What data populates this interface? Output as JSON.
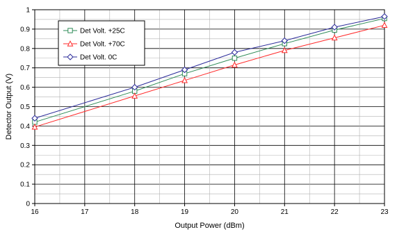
{
  "chart_data": {
    "type": "line",
    "title": "",
    "xlabel": "Output Power (dBm)",
    "ylabel": "Detector Output (V)",
    "xlim": [
      16,
      23
    ],
    "ylim": [
      0,
      1
    ],
    "x_ticks": [
      "16",
      "17",
      "18",
      "19",
      "20",
      "21",
      "22",
      "23"
    ],
    "y_ticks": [
      "0",
      "0.1",
      "0.2",
      "0.3",
      "0.4",
      "0.5",
      "0.6",
      "0.7",
      "0.8",
      "0.9",
      "1"
    ],
    "grid": true,
    "legend_position": "top-left",
    "series": [
      {
        "name": "Det Volt. +25C",
        "marker": "square",
        "color": "#2e8b57",
        "x": [
          16,
          18,
          19,
          20,
          21,
          22,
          23
        ],
        "y": [
          0.42,
          0.58,
          0.67,
          0.75,
          0.825,
          0.895,
          0.955
        ]
      },
      {
        "name": "Det Volt. +70C",
        "marker": "triangle",
        "color": "#ff2a2a",
        "x": [
          16,
          18,
          19,
          20,
          21,
          22,
          23
        ],
        "y": [
          0.395,
          0.555,
          0.635,
          0.715,
          0.79,
          0.855,
          0.92
        ]
      },
      {
        "name": "Det Volt. 0C",
        "marker": "diamond",
        "color": "#2b2b9a",
        "x": [
          16,
          18,
          19,
          20,
          21,
          22,
          23
        ],
        "y": [
          0.44,
          0.6,
          0.69,
          0.78,
          0.84,
          0.91,
          0.965
        ]
      }
    ]
  }
}
